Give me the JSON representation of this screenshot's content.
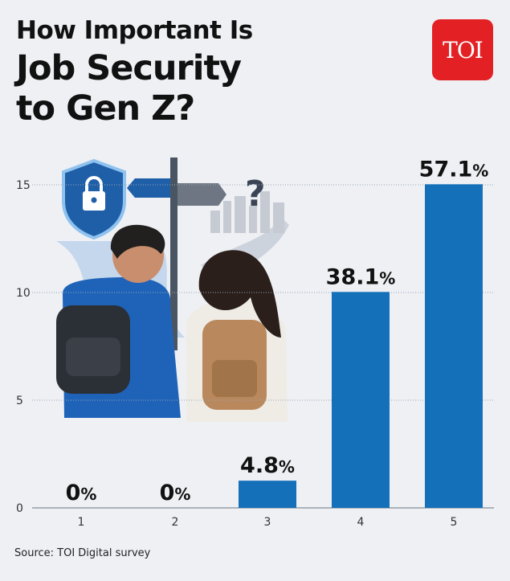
{
  "header": {
    "title_line1": "How Important Is",
    "title_line2": "Job Security",
    "title_line3": "to Gen Z?",
    "logo_text": "TOI"
  },
  "footer": {
    "source": "Source: TOI Digital survey"
  },
  "colors": {
    "bar": "#1570ba",
    "logo": "#e32124",
    "background": "#eef0f4"
  },
  "chart_data": {
    "type": "bar",
    "categories": [
      "1",
      "2",
      "3",
      "4",
      "5"
    ],
    "values": [
      0,
      0,
      4.8,
      38.1,
      57.1
    ],
    "data_labels": [
      "0",
      "0",
      "4.8",
      "38.1",
      "57.1"
    ],
    "label_suffix": "%",
    "yticks": [
      0,
      5,
      10,
      15
    ],
    "ylim": [
      0,
      15.5
    ],
    "grid": true,
    "title": "",
    "xlabel": "",
    "ylabel": ""
  }
}
